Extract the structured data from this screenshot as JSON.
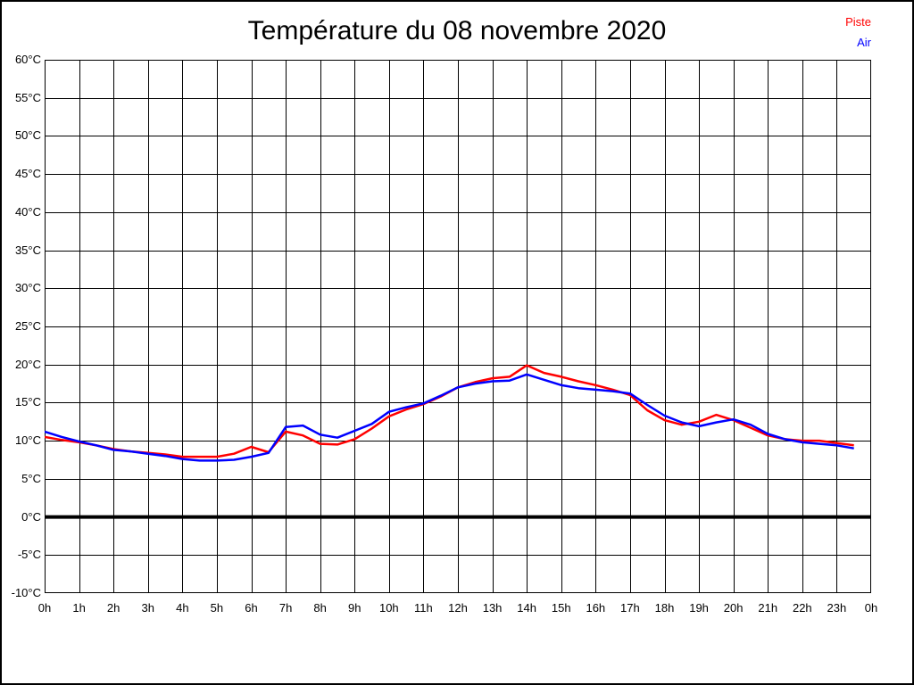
{
  "title": "Température du 08 novembre 2020",
  "legend": {
    "entries": [
      {
        "label": "Piste",
        "color": "#ff0000"
      },
      {
        "label": "Air",
        "color": "#0000ff"
      }
    ],
    "position": "top-right"
  },
  "chart_data": {
    "type": "line",
    "title": "Température du 08 novembre 2020",
    "xlabel": "",
    "ylabel": "",
    "xlim": [
      0,
      24
    ],
    "ylim": [
      -10,
      60
    ],
    "grid": true,
    "zero_line_bold": true,
    "legend_position": "top-right",
    "y_tick_values": [
      60,
      55,
      50,
      45,
      40,
      35,
      30,
      25,
      20,
      15,
      10,
      5,
      0,
      -5,
      -10
    ],
    "y_tick_labels": [
      "60°C",
      "55°C",
      "50°C",
      "45°C",
      "40°C",
      "35°C",
      "30°C",
      "25°C",
      "20°C",
      "15°C",
      "10°C",
      "5°C",
      "0°C",
      "-5°C",
      "-10°C"
    ],
    "x_tick_values": [
      0,
      1,
      2,
      3,
      4,
      5,
      6,
      7,
      8,
      9,
      10,
      11,
      12,
      13,
      14,
      15,
      16,
      17,
      18,
      19,
      20,
      21,
      22,
      23,
      24
    ],
    "x_tick_labels": [
      "0h",
      "1h",
      "2h",
      "3h",
      "4h",
      "5h",
      "6h",
      "7h",
      "8h",
      "9h",
      "10h",
      "11h",
      "12h",
      "13h",
      "14h",
      "15h",
      "16h",
      "17h",
      "18h",
      "19h",
      "20h",
      "21h",
      "22h",
      "23h",
      "0h"
    ],
    "x": [
      0,
      0.5,
      1,
      1.5,
      2,
      2.5,
      3,
      3.5,
      4,
      4.5,
      5,
      5.5,
      6,
      6.5,
      7,
      7.5,
      8,
      8.5,
      9,
      9.5,
      10,
      10.5,
      11,
      11.5,
      12,
      12.5,
      13,
      13.5,
      14,
      14.5,
      15,
      15.5,
      16,
      16.5,
      17,
      17.5,
      18,
      18.5,
      19,
      19.5,
      20,
      20.5,
      21,
      21.5,
      22,
      22.5,
      23,
      23.5
    ],
    "series": [
      {
        "name": "Piste",
        "color": "#ff0000",
        "values": [
          10.5,
          10.1,
          9.8,
          9.4,
          8.9,
          8.6,
          8.4,
          8.2,
          7.9,
          7.9,
          7.9,
          8.3,
          9.2,
          8.5,
          11.2,
          10.7,
          9.6,
          9.5,
          10.2,
          11.6,
          13.2,
          14.1,
          14.8,
          15.8,
          17.0,
          17.7,
          18.2,
          18.4,
          19.9,
          18.9,
          18.4,
          17.8,
          17.3,
          16.7,
          16.0,
          14.0,
          12.7,
          12.1,
          12.5,
          13.4,
          12.7,
          11.7,
          10.7,
          10.2,
          10.0,
          10.0,
          9.7,
          9.4
        ]
      },
      {
        "name": "Air",
        "color": "#0000ff",
        "values": [
          11.2,
          10.5,
          9.9,
          9.4,
          8.8,
          8.6,
          8.3,
          8.0,
          7.6,
          7.4,
          7.4,
          7.5,
          7.9,
          8.4,
          11.8,
          12.0,
          10.8,
          10.4,
          11.3,
          12.2,
          13.8,
          14.4,
          14.9,
          15.9,
          17.0,
          17.5,
          17.8,
          17.9,
          18.7,
          18.0,
          17.3,
          16.9,
          16.7,
          16.5,
          16.2,
          14.7,
          13.3,
          12.4,
          11.9,
          12.4,
          12.8,
          12.1,
          10.9,
          10.2,
          9.8,
          9.6,
          9.4,
          9.0
        ]
      }
    ]
  }
}
